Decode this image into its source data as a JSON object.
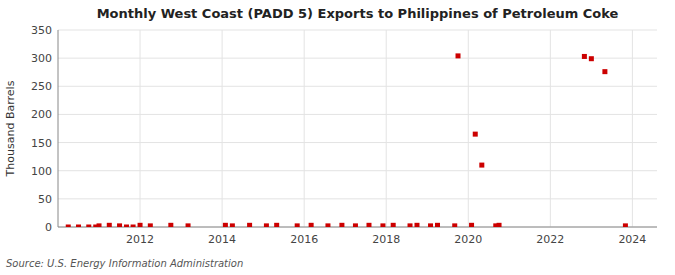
{
  "chart_data": {
    "type": "scatter",
    "title": "Monthly West Coast (PADD 5) Exports to Philippines of Petroleum Coke",
    "y_label": "Thousand Barrels",
    "annotations": [
      "Source: U.S. Energy Information Administration"
    ],
    "color": "#cc0000",
    "marker": "square",
    "grid": true,
    "xlim": [
      2010.0,
      2024.6
    ],
    "ylim": [
      0,
      350
    ],
    "xticks": [
      2012,
      2014,
      2016,
      2018,
      2020,
      2022,
      2024
    ],
    "yticks": [
      0,
      50,
      100,
      150,
      200,
      250,
      300,
      350
    ],
    "x": [
      2010.25,
      2010.5,
      2010.75,
      2010.92,
      2011.0,
      2011.25,
      2011.5,
      2011.67,
      2011.83,
      2012.0,
      2012.25,
      2012.75,
      2013.17,
      2014.08,
      2014.25,
      2014.67,
      2015.08,
      2015.33,
      2015.83,
      2016.17,
      2016.58,
      2016.92,
      2017.25,
      2017.58,
      2017.92,
      2018.17,
      2018.58,
      2018.75,
      2019.08,
      2019.25,
      2019.67,
      2019.75,
      2020.08,
      2020.17,
      2020.33,
      2020.67,
      2020.75,
      2022.83,
      2023.0,
      2023.33,
      2023.83
    ],
    "values": [
      0,
      0,
      0,
      0,
      2,
      3,
      2,
      0,
      0,
      3,
      2,
      3,
      2,
      3,
      2,
      3,
      2,
      3,
      2,
      3,
      2,
      3,
      2,
      3,
      2,
      3,
      2,
      3,
      2,
      3,
      2,
      304,
      3,
      165,
      110,
      2,
      3,
      303,
      299,
      276,
      2
    ]
  }
}
